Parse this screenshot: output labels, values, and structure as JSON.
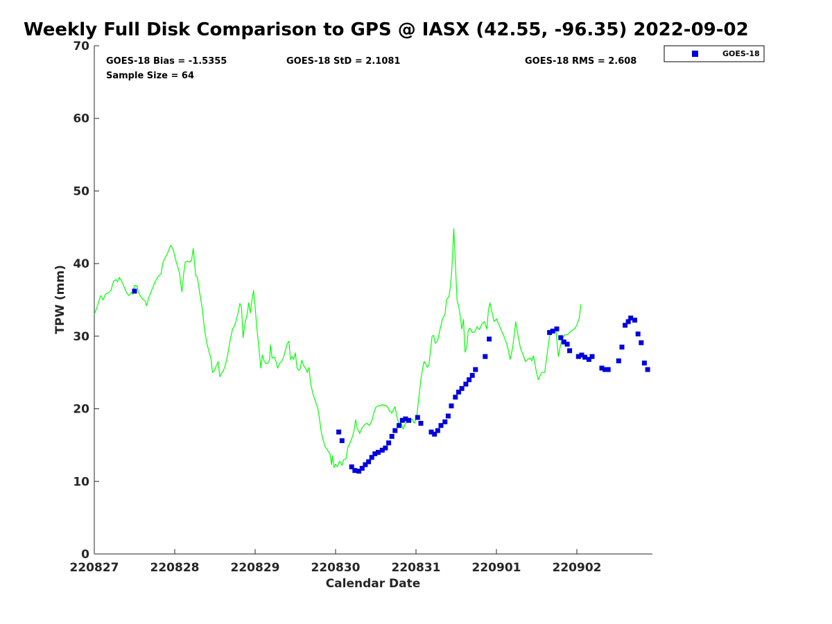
{
  "chart_data": {
    "type": "scatter",
    "title": "Weekly Full Disk Comparison to GPS @ IASX (42.55, -96.35) 2022-09-02",
    "xlabel": "Calendar Date",
    "ylabel": "TPW (mm)",
    "xlim": [
      0,
      6.95
    ],
    "ylim": [
      0,
      70
    ],
    "yticks": [
      0,
      10,
      20,
      30,
      40,
      50,
      60,
      70
    ],
    "xticks": [
      {
        "value": 0,
        "label": "220827"
      },
      {
        "value": 1,
        "label": "220828"
      },
      {
        "value": 2,
        "label": "220829"
      },
      {
        "value": 3,
        "label": "220830"
      },
      {
        "value": 4,
        "label": "220831"
      },
      {
        "value": 5,
        "label": "220901"
      },
      {
        "value": 6,
        "label": "220902"
      }
    ],
    "stats": {
      "bias": "GOES-18 Bias = -1.5355",
      "std": "GOES-18 StD = 2.1081",
      "rms": "GOES-18 RMS = 2.608",
      "sample": "Sample Size = 64"
    },
    "legend": {
      "position": "top-right",
      "entries": [
        "GOES-18"
      ]
    },
    "colors": {
      "goes": "#0000dd",
      "gps": "#00ff00"
    },
    "series": [
      {
        "name": "GOES-18",
        "kind": "scatter",
        "points": [
          [
            0.5,
            36.2
          ],
          [
            3.04,
            16.8
          ],
          [
            3.08,
            15.6
          ],
          [
            3.2,
            12.0
          ],
          [
            3.24,
            11.5
          ],
          [
            3.29,
            11.4
          ],
          [
            3.33,
            11.8
          ],
          [
            3.37,
            12.3
          ],
          [
            3.41,
            12.7
          ],
          [
            3.45,
            13.3
          ],
          [
            3.49,
            13.8
          ],
          [
            3.53,
            14.0
          ],
          [
            3.58,
            14.3
          ],
          [
            3.62,
            14.6
          ],
          [
            3.66,
            15.3
          ],
          [
            3.7,
            16.2
          ],
          [
            3.74,
            17.0
          ],
          [
            3.79,
            17.7
          ],
          [
            3.83,
            18.4
          ],
          [
            3.87,
            18.6
          ],
          [
            3.91,
            18.4
          ],
          [
            4.02,
            18.8
          ],
          [
            4.06,
            18.0
          ],
          [
            4.19,
            16.8
          ],
          [
            4.23,
            16.5
          ],
          [
            4.27,
            17.0
          ],
          [
            4.31,
            17.7
          ],
          [
            4.36,
            18.2
          ],
          [
            4.4,
            19.0
          ],
          [
            4.44,
            20.4
          ],
          [
            4.49,
            21.6
          ],
          [
            4.53,
            22.3
          ],
          [
            4.57,
            22.8
          ],
          [
            4.62,
            23.4
          ],
          [
            4.66,
            24.0
          ],
          [
            4.7,
            24.6
          ],
          [
            4.74,
            25.4
          ],
          [
            4.86,
            27.2
          ],
          [
            4.91,
            29.6
          ],
          [
            5.66,
            30.5
          ],
          [
            5.7,
            30.7
          ],
          [
            5.75,
            31.0
          ],
          [
            5.8,
            29.8
          ],
          [
            5.84,
            29.2
          ],
          [
            5.88,
            28.9
          ],
          [
            5.91,
            28.0
          ],
          [
            6.02,
            27.2
          ],
          [
            6.06,
            27.4
          ],
          [
            6.1,
            27.1
          ],
          [
            6.15,
            26.8
          ],
          [
            6.19,
            27.2
          ],
          [
            6.31,
            25.6
          ],
          [
            6.35,
            25.4
          ],
          [
            6.39,
            25.4
          ],
          [
            6.52,
            26.6
          ],
          [
            6.56,
            28.5
          ],
          [
            6.6,
            31.5
          ],
          [
            6.64,
            32.0
          ],
          [
            6.67,
            32.5
          ],
          [
            6.72,
            32.2
          ],
          [
            6.76,
            30.3
          ],
          [
            6.8,
            29.1
          ],
          [
            6.84,
            26.3
          ],
          [
            6.88,
            25.4
          ]
        ]
      },
      {
        "name": "",
        "kind": "line",
        "points": [
          [
            0.0,
            33.0
          ],
          [
            0.04,
            34.2
          ],
          [
            0.08,
            35.6
          ],
          [
            0.11,
            35.0
          ],
          [
            0.14,
            35.8
          ],
          [
            0.18,
            36.0
          ],
          [
            0.21,
            36.4
          ],
          [
            0.24,
            37.6
          ],
          [
            0.27,
            37.8
          ],
          [
            0.29,
            37.5
          ],
          [
            0.31,
            38.1
          ],
          [
            0.34,
            37.6
          ],
          [
            0.37,
            36.8
          ],
          [
            0.4,
            36.0
          ],
          [
            0.43,
            35.6
          ],
          [
            0.46,
            36.0
          ],
          [
            0.48,
            35.8
          ],
          [
            0.5,
            37.0
          ],
          [
            0.53,
            36.9
          ],
          [
            0.55,
            36.0
          ],
          [
            0.58,
            35.4
          ],
          [
            0.61,
            35.0
          ],
          [
            0.63,
            34.9
          ],
          [
            0.65,
            34.2
          ],
          [
            0.68,
            35.4
          ],
          [
            0.72,
            36.5
          ],
          [
            0.76,
            37.6
          ],
          [
            0.8,
            38.3
          ],
          [
            0.83,
            38.6
          ],
          [
            0.85,
            40.0
          ],
          [
            0.88,
            40.8
          ],
          [
            0.91,
            41.4
          ],
          [
            0.93,
            42.0
          ],
          [
            0.95,
            42.5
          ],
          [
            0.98,
            42.0
          ],
          [
            1.0,
            41.0
          ],
          [
            1.03,
            39.8
          ],
          [
            1.06,
            38.7
          ],
          [
            1.08,
            36.8
          ],
          [
            1.09,
            36.1
          ],
          [
            1.11,
            38.5
          ],
          [
            1.13,
            40.2
          ],
          [
            1.16,
            40.3
          ],
          [
            1.19,
            40.2
          ],
          [
            1.21,
            40.5
          ],
          [
            1.23,
            42.1
          ],
          [
            1.24,
            41.0
          ],
          [
            1.26,
            38.3
          ],
          [
            1.28,
            38.2
          ],
          [
            1.31,
            36.0
          ],
          [
            1.34,
            34.0
          ],
          [
            1.37,
            31.0
          ],
          [
            1.4,
            29.0
          ],
          [
            1.43,
            27.7
          ],
          [
            1.45,
            27.0
          ],
          [
            1.47,
            25.0
          ],
          [
            1.49,
            25.2
          ],
          [
            1.52,
            26.0
          ],
          [
            1.54,
            26.5
          ],
          [
            1.56,
            24.4
          ],
          [
            1.58,
            24.9
          ],
          [
            1.6,
            25.1
          ],
          [
            1.63,
            26.0
          ],
          [
            1.66,
            27.5
          ],
          [
            1.69,
            29.5
          ],
          [
            1.72,
            31.0
          ],
          [
            1.74,
            31.3
          ],
          [
            1.76,
            32.0
          ],
          [
            1.79,
            33.3
          ],
          [
            1.81,
            34.5
          ],
          [
            1.83,
            34.0
          ],
          [
            1.85,
            29.8
          ],
          [
            1.87,
            31.5
          ],
          [
            1.9,
            33.0
          ],
          [
            1.92,
            34.6
          ],
          [
            1.94,
            33.2
          ],
          [
            1.96,
            35.0
          ],
          [
            1.98,
            36.3
          ],
          [
            2.0,
            34.0
          ],
          [
            2.02,
            31.3
          ],
          [
            2.05,
            28.0
          ],
          [
            2.07,
            25.6
          ],
          [
            2.09,
            27.4
          ],
          [
            2.11,
            26.6
          ],
          [
            2.14,
            26.2
          ],
          [
            2.16,
            26.3
          ],
          [
            2.18,
            26.8
          ],
          [
            2.19,
            28.8
          ],
          [
            2.21,
            27.0
          ],
          [
            2.24,
            27.1
          ],
          [
            2.26,
            26.5
          ],
          [
            2.28,
            25.6
          ],
          [
            2.3,
            26.2
          ],
          [
            2.33,
            26.5
          ],
          [
            2.35,
            27.0
          ],
          [
            2.38,
            28.2
          ],
          [
            2.4,
            29.0
          ],
          [
            2.42,
            29.3
          ],
          [
            2.44,
            26.8
          ],
          [
            2.46,
            27.2
          ],
          [
            2.48,
            26.8
          ],
          [
            2.5,
            27.7
          ],
          [
            2.52,
            25.7
          ],
          [
            2.54,
            25.3
          ],
          [
            2.56,
            25.5
          ],
          [
            2.58,
            26.7
          ],
          [
            2.6,
            26.0
          ],
          [
            2.63,
            25.5
          ],
          [
            2.65,
            25.0
          ],
          [
            2.67,
            25.7
          ],
          [
            2.69,
            23.5
          ],
          [
            2.72,
            22.0
          ],
          [
            2.75,
            21.0
          ],
          [
            2.78,
            20.0
          ],
          [
            2.8,
            18.6
          ],
          [
            2.82,
            17.0
          ],
          [
            2.84,
            15.9
          ],
          [
            2.87,
            14.8
          ],
          [
            2.9,
            14.3
          ],
          [
            2.93,
            13.8
          ],
          [
            2.95,
            12.3
          ],
          [
            2.96,
            13.5
          ],
          [
            2.98,
            11.9
          ],
          [
            3.0,
            12.4
          ],
          [
            3.02,
            12.0
          ],
          [
            3.05,
            12.8
          ],
          [
            3.08,
            12.2
          ],
          [
            3.1,
            13.0
          ],
          [
            3.13,
            13.1
          ],
          [
            3.15,
            14.6
          ],
          [
            3.18,
            15.3
          ],
          [
            3.21,
            16.2
          ],
          [
            3.23,
            17.0
          ],
          [
            3.25,
            18.5
          ],
          [
            3.27,
            17.3
          ],
          [
            3.3,
            16.6
          ],
          [
            3.33,
            17.4
          ],
          [
            3.36,
            17.8
          ],
          [
            3.39,
            18.0
          ],
          [
            3.42,
            17.7
          ],
          [
            3.45,
            18.3
          ],
          [
            3.48,
            19.6
          ],
          [
            3.5,
            20.2
          ],
          [
            3.53,
            20.4
          ],
          [
            3.56,
            20.4
          ],
          [
            3.58,
            20.6
          ],
          [
            3.6,
            20.4
          ],
          [
            3.62,
            20.5
          ],
          [
            3.65,
            20.2
          ],
          [
            3.67,
            19.7
          ],
          [
            3.7,
            19.4
          ],
          [
            3.72,
            19.9
          ],
          [
            3.74,
            20.3
          ],
          [
            3.76,
            19.0
          ],
          [
            3.79,
            17.8
          ],
          [
            3.81,
            18.2
          ],
          [
            3.84,
            17.2
          ],
          [
            3.87,
            18.0
          ],
          [
            3.9,
            18.2
          ],
          [
            3.92,
            18.4
          ],
          [
            3.95,
            18.6
          ],
          [
            3.98,
            18.0
          ],
          [
            4.01,
            19.0
          ],
          [
            4.04,
            22.0
          ],
          [
            4.06,
            24.0
          ],
          [
            4.08,
            25.4
          ],
          [
            4.1,
            26.5
          ],
          [
            4.12,
            26.2
          ],
          [
            4.14,
            25.7
          ],
          [
            4.16,
            26.0
          ],
          [
            4.18,
            28.0
          ],
          [
            4.2,
            30.0
          ],
          [
            4.22,
            30.1
          ],
          [
            4.24,
            29.0
          ],
          [
            4.27,
            29.4
          ],
          [
            4.3,
            31.0
          ],
          [
            4.33,
            32.4
          ],
          [
            4.36,
            33.0
          ],
          [
            4.38,
            35.0
          ],
          [
            4.41,
            35.5
          ],
          [
            4.43,
            37.0
          ],
          [
            4.45,
            40.0
          ],
          [
            4.47,
            44.8
          ],
          [
            4.49,
            40.0
          ],
          [
            4.51,
            35.0
          ],
          [
            4.54,
            33.6
          ],
          [
            4.57,
            31.0
          ],
          [
            4.59,
            32.3
          ],
          [
            4.61,
            27.8
          ],
          [
            4.63,
            28.5
          ],
          [
            4.65,
            30.8
          ],
          [
            4.67,
            31.1
          ],
          [
            4.7,
            30.5
          ],
          [
            4.73,
            30.6
          ],
          [
            4.76,
            31.3
          ],
          [
            4.79,
            30.9
          ],
          [
            4.82,
            31.7
          ],
          [
            4.85,
            32.0
          ],
          [
            4.88,
            31.0
          ],
          [
            4.9,
            33.5
          ],
          [
            4.92,
            34.6
          ],
          [
            4.95,
            33.0
          ],
          [
            4.97,
            32.0
          ],
          [
            5.0,
            32.4
          ],
          [
            5.03,
            31.6
          ],
          [
            5.06,
            30.8
          ],
          [
            5.09,
            30.1
          ],
          [
            5.12,
            29.2
          ],
          [
            5.15,
            28.0
          ],
          [
            5.17,
            26.8
          ],
          [
            5.2,
            28.3
          ],
          [
            5.22,
            30.0
          ],
          [
            5.24,
            32.0
          ],
          [
            5.27,
            30.0
          ],
          [
            5.3,
            28.3
          ],
          [
            5.33,
            27.5
          ],
          [
            5.36,
            26.5
          ],
          [
            5.39,
            26.8
          ],
          [
            5.42,
            27.0
          ],
          [
            5.44,
            26.6
          ],
          [
            5.46,
            27.3
          ],
          [
            5.49,
            25.5
          ],
          [
            5.52,
            24.0
          ],
          [
            5.56,
            25.0
          ],
          [
            5.6,
            25.0
          ],
          [
            5.63,
            27.5
          ],
          [
            5.66,
            30.0
          ],
          [
            5.7,
            30.8
          ],
          [
            5.74,
            31.0
          ],
          [
            5.77,
            27.2
          ],
          [
            5.81,
            29.5
          ],
          [
            5.85,
            30.2
          ],
          [
            5.88,
            30.2
          ],
          [
            5.91,
            30.5
          ],
          [
            5.94,
            30.8
          ],
          [
            5.97,
            31.0
          ],
          [
            6.0,
            31.5
          ],
          [
            6.03,
            32.5
          ],
          [
            6.05,
            34.4
          ]
        ]
      }
    ]
  }
}
